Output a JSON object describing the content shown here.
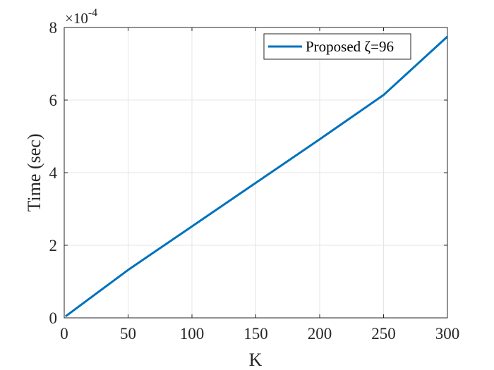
{
  "chart_data": {
    "type": "line",
    "xlabel": "K",
    "ylabel": "Time (sec)",
    "y_exponent_prefix": "×10",
    "y_exponent_power": "-4",
    "xlim": [
      0,
      300
    ],
    "ylim": [
      0,
      8
    ],
    "y_scale_factor": 0.0001,
    "xticks": [
      0,
      50,
      100,
      150,
      200,
      250,
      300
    ],
    "yticks": [
      0,
      2,
      4,
      6,
      8
    ],
    "grid": true,
    "legend_position": "top-right",
    "series": [
      {
        "name": "Proposed ζ=96",
        "color": "#0072BD",
        "x": [
          1,
          50,
          100,
          150,
          200,
          250,
          300
        ],
        "y": [
          0.04,
          1.32,
          2.52,
          3.72,
          4.92,
          6.14,
          7.75
        ]
      }
    ]
  }
}
